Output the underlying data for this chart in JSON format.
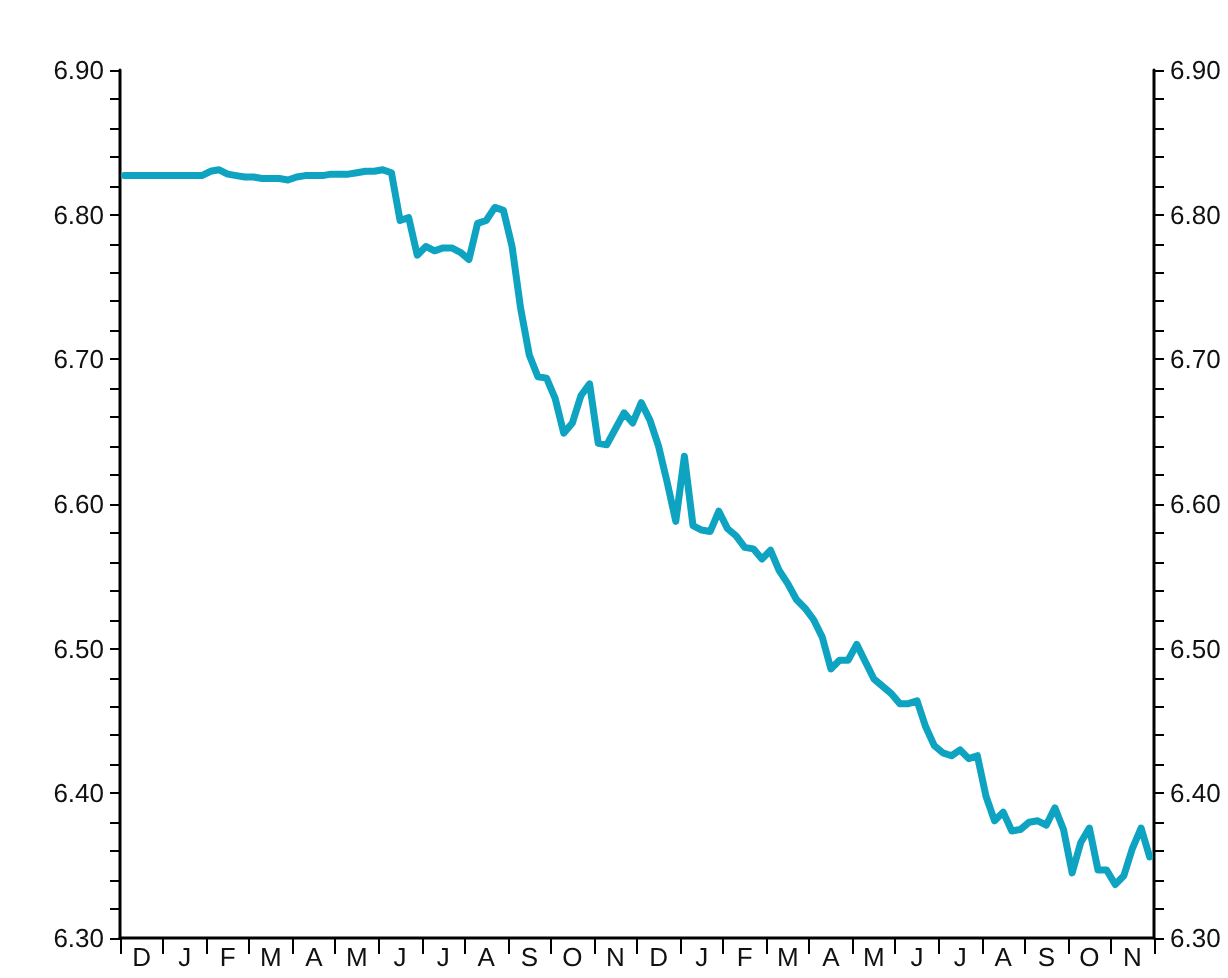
{
  "chart_data": {
    "type": "line",
    "color": "#0fa3c2",
    "grid": false,
    "categories": [
      null,
      null,
      "D",
      null,
      null,
      null,
      null,
      "J",
      null,
      null,
      null,
      null,
      "F",
      null,
      null,
      null,
      null,
      "M",
      null,
      null,
      null,
      null,
      "A",
      null,
      null,
      null,
      null,
      "M",
      null,
      null,
      null,
      null,
      "J",
      null,
      null,
      null,
      null,
      "J",
      null,
      null,
      null,
      null,
      "A",
      null,
      null,
      null,
      null,
      "S",
      null,
      null,
      null,
      null,
      "O",
      null,
      null,
      null,
      null,
      "N",
      null,
      null,
      null,
      null,
      "D",
      null,
      null,
      null,
      null,
      "J",
      null,
      null,
      null,
      null,
      "F",
      null,
      null,
      null,
      null,
      "M",
      null,
      null,
      null,
      null,
      "A",
      null,
      null,
      null,
      null,
      "M",
      null,
      null,
      null,
      null,
      "J",
      null,
      null,
      null,
      null,
      "J",
      null,
      null,
      null,
      null,
      "A",
      null,
      null,
      null,
      null,
      "S",
      null,
      null,
      null,
      null,
      "O",
      null,
      null,
      null,
      null,
      "N",
      null,
      null
    ],
    "values": [
      6.827,
      6.827,
      6.827,
      6.827,
      6.827,
      6.827,
      6.827,
      6.827,
      6.827,
      6.827,
      6.83,
      6.831,
      6.828,
      6.827,
      6.826,
      6.826,
      6.825,
      6.825,
      6.825,
      6.824,
      6.826,
      6.827,
      6.827,
      6.827,
      6.828,
      6.828,
      6.828,
      6.829,
      6.83,
      6.83,
      6.831,
      6.829,
      6.796,
      6.798,
      6.772,
      6.778,
      6.775,
      6.777,
      6.777,
      6.774,
      6.769,
      6.794,
      6.796,
      6.805,
      6.803,
      6.778,
      6.735,
      6.703,
      6.688,
      6.687,
      6.673,
      6.649,
      6.656,
      6.675,
      6.683,
      6.642,
      6.641,
      6.652,
      6.663,
      6.656,
      6.67,
      6.658,
      6.64,
      6.615,
      6.588,
      6.633,
      6.585,
      6.582,
      6.581,
      6.595,
      6.583,
      6.578,
      6.57,
      6.569,
      6.562,
      6.568,
      6.554,
      6.545,
      6.534,
      6.528,
      6.52,
      6.508,
      6.486,
      6.492,
      6.492,
      6.503,
      6.491,
      6.479,
      6.474,
      6.469,
      6.462,
      6.462,
      6.464,
      6.446,
      6.433,
      6.428,
      6.426,
      6.43,
      6.424,
      6.426,
      6.398,
      6.381,
      6.387,
      6.374,
      6.375,
      6.38,
      6.381,
      6.378,
      6.39,
      6.375,
      6.345,
      6.366,
      6.376,
      6.347,
      6.347,
      6.337,
      6.343,
      6.362,
      6.376,
      6.356
    ],
    "ylim": [
      6.3,
      6.9
    ],
    "yticks": [
      {
        "value": 6.3,
        "label": "6.30"
      },
      {
        "value": 6.32,
        "label": null
      },
      {
        "value": 6.34,
        "label": null
      },
      {
        "value": 6.36,
        "label": null
      },
      {
        "value": 6.38,
        "label": null
      },
      {
        "value": 6.4,
        "label": "6.40"
      },
      {
        "value": 6.42,
        "label": null
      },
      {
        "value": 6.44,
        "label": null
      },
      {
        "value": 6.46,
        "label": null
      },
      {
        "value": 6.48,
        "label": null
      },
      {
        "value": 6.5,
        "label": "6.50"
      },
      {
        "value": 6.52,
        "label": null
      },
      {
        "value": 6.54,
        "label": null
      },
      {
        "value": 6.56,
        "label": null
      },
      {
        "value": 6.58,
        "label": null
      },
      {
        "value": 6.6,
        "label": "6.60"
      },
      {
        "value": 6.62,
        "label": null
      },
      {
        "value": 6.64,
        "label": null
      },
      {
        "value": 6.66,
        "label": null
      },
      {
        "value": 6.68,
        "label": null
      },
      {
        "value": 6.7,
        "label": "6.70"
      },
      {
        "value": 6.72,
        "label": null
      },
      {
        "value": 6.74,
        "label": null
      },
      {
        "value": 6.76,
        "label": null
      },
      {
        "value": 6.78,
        "label": null
      },
      {
        "value": 6.8,
        "label": "6.80"
      },
      {
        "value": 6.82,
        "label": null
      },
      {
        "value": 6.84,
        "label": null
      },
      {
        "value": 6.86,
        "label": null
      },
      {
        "value": 6.88,
        "label": null
      },
      {
        "value": 6.9,
        "label": "6.90"
      }
    ],
    "y2lim": [
      6.3,
      6.9
    ],
    "y2ticks": [
      {
        "value": 6.3,
        "label": "6.30"
      },
      {
        "value": 6.32,
        "label": null
      },
      {
        "value": 6.34,
        "label": null
      },
      {
        "value": 6.36,
        "label": null
      },
      {
        "value": 6.38,
        "label": null
      },
      {
        "value": 6.4,
        "label": "6.40"
      },
      {
        "value": 6.42,
        "label": null
      },
      {
        "value": 6.44,
        "label": null
      },
      {
        "value": 6.46,
        "label": null
      },
      {
        "value": 6.48,
        "label": null
      },
      {
        "value": 6.5,
        "label": "6.50"
      },
      {
        "value": 6.52,
        "label": null
      },
      {
        "value": 6.54,
        "label": null
      },
      {
        "value": 6.56,
        "label": null
      },
      {
        "value": 6.58,
        "label": null
      },
      {
        "value": 6.6,
        "label": "6.60"
      },
      {
        "value": 6.62,
        "label": null
      },
      {
        "value": 6.64,
        "label": null
      },
      {
        "value": 6.66,
        "label": null
      },
      {
        "value": 6.68,
        "label": null
      },
      {
        "value": 6.7,
        "label": "6.70"
      },
      {
        "value": 6.72,
        "label": null
      },
      {
        "value": 6.74,
        "label": null
      },
      {
        "value": 6.76,
        "label": null
      },
      {
        "value": 6.78,
        "label": null
      },
      {
        "value": 6.8,
        "label": "6.80"
      },
      {
        "value": 6.82,
        "label": null
      },
      {
        "value": 6.84,
        "label": null
      },
      {
        "value": 6.86,
        "label": null
      },
      {
        "value": 6.88,
        "label": null
      },
      {
        "value": 6.9,
        "label": "6.90"
      }
    ]
  }
}
